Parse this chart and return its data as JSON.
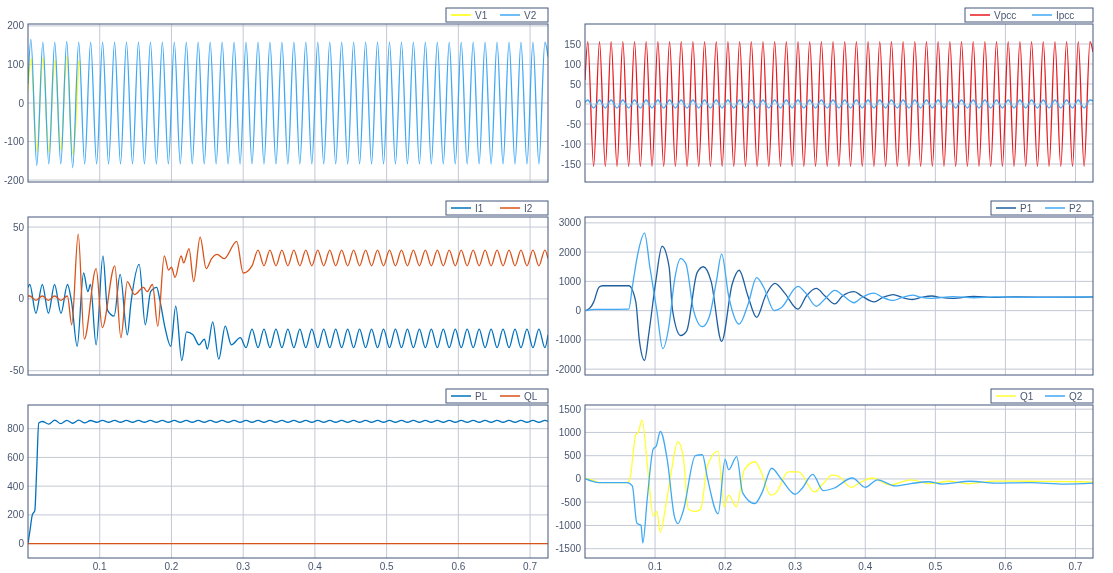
{
  "chart_data": [
    {
      "type": "line",
      "xlim": [
        0,
        0.725
      ],
      "xticks": [
        0.1,
        0.2,
        0.3,
        0.4,
        0.5,
        0.6,
        0.7
      ],
      "ylim": [
        -205,
        205
      ],
      "yticks": [
        -200,
        -100,
        0,
        100,
        200
      ],
      "grid": true,
      "legend": "top right",
      "tick_labels": "y",
      "x": [
        0,
        0.004,
        0.0123,
        0.0207,
        0.029,
        0.0373,
        0.0457,
        0.054,
        0.0623,
        0.0707,
        0.079,
        0.0873,
        0.0957,
        0.104,
        0.1123,
        0.1207,
        0.129,
        0.1373,
        0.1457,
        0.154,
        0.1623,
        0.1707,
        0.179,
        0.1873,
        0.1957,
        0.204,
        0.2123,
        0.2207,
        0.229,
        0.2373,
        0.2457,
        0.254,
        0.2623,
        0.2707,
        0.279,
        0.2873,
        0.2957,
        0.304,
        0.3123,
        0.3207,
        0.329,
        0.3373,
        0.3457,
        0.354,
        0.3623,
        0.3707,
        0.379,
        0.3873,
        0.3957,
        0.404,
        0.4123,
        0.4207,
        0.429,
        0.4373,
        0.4457,
        0.454,
        0.4623,
        0.4707,
        0.479,
        0.4873,
        0.4957,
        0.504,
        0.5123,
        0.5207,
        0.529,
        0.5373,
        0.5457,
        0.554,
        0.5623,
        0.5707,
        0.579,
        0.5873,
        0.5957,
        0.604,
        0.6123,
        0.6207,
        0.629,
        0.6373,
        0.6457,
        0.654,
        0.6623,
        0.6707,
        0.679,
        0.6873,
        0.6957,
        0.704,
        0.7123,
        0.7207,
        0.725
      ],
      "series": [
        {
          "name": "V1",
          "color": "#ffff00",
          "x": [
            0,
            0.004,
            0.0123,
            0.0207,
            0.029,
            0.0373,
            0.0457,
            0.054,
            0.0623,
            0.0707
          ],
          "values": [
            30,
            115,
            -125,
            118,
            -128,
            112,
            -122,
            120,
            -132,
            110
          ]
        },
        {
          "name": "V2",
          "color": "#3fa9f5",
          "values": [
            50,
            165,
            -162,
            158,
            -158,
            158,
            -158,
            160,
            -168,
            158,
            -158,
            158,
            -158,
            158,
            -158,
            158,
            -158,
            158,
            -158,
            158,
            -158,
            158,
            -158,
            158,
            -158,
            158,
            -158,
            158,
            -158,
            158,
            -158,
            158,
            -158,
            158,
            -158,
            158,
            -158,
            158,
            -158,
            158,
            -158,
            158,
            -158,
            158,
            -158,
            158,
            -158,
            158,
            -158,
            158,
            -158,
            158,
            -158,
            158,
            -158,
            158,
            -158,
            158,
            -158,
            158,
            -158,
            158,
            -158,
            158,
            -158,
            158,
            -158,
            158,
            -158,
            158,
            -158,
            158,
            -158,
            158,
            -158,
            158,
            -158,
            158,
            -158,
            158,
            -158,
            158,
            -158,
            158,
            -158,
            158,
            -158,
            158,
            120
          ]
        }
      ]
    },
    {
      "type": "line",
      "xlim": [
        0,
        0.725
      ],
      "xticks": [
        0.1,
        0.2,
        0.3,
        0.4,
        0.5,
        0.6,
        0.7
      ],
      "ylim": [
        -195,
        200
      ],
      "yticks": [
        -150,
        -100,
        -50,
        0,
        50,
        100,
        150
      ],
      "grid": true,
      "legend": "top right",
      "tick_labels": "y",
      "x": [
        0,
        0.004,
        0.0123,
        0.0207,
        0.029,
        0.0373,
        0.0457,
        0.054,
        0.0623,
        0.0707,
        0.079,
        0.0873,
        0.0957,
        0.104,
        0.1123,
        0.1207,
        0.129,
        0.1373,
        0.1457,
        0.154,
        0.1623,
        0.1707,
        0.179,
        0.1873,
        0.1957,
        0.204,
        0.2123,
        0.2207,
        0.229,
        0.2373,
        0.2457,
        0.254,
        0.2623,
        0.2707,
        0.279,
        0.2873,
        0.2957,
        0.304,
        0.3123,
        0.3207,
        0.329,
        0.3373,
        0.3457,
        0.354,
        0.3623,
        0.3707,
        0.379,
        0.3873,
        0.3957,
        0.404,
        0.4123,
        0.4207,
        0.429,
        0.4373,
        0.4457,
        0.454,
        0.4623,
        0.4707,
        0.479,
        0.4873,
        0.4957,
        0.504,
        0.5123,
        0.5207,
        0.529,
        0.5373,
        0.5457,
        0.554,
        0.5623,
        0.5707,
        0.579,
        0.5873,
        0.5957,
        0.604,
        0.6123,
        0.6207,
        0.629,
        0.6373,
        0.6457,
        0.654,
        0.6623,
        0.6707,
        0.679,
        0.6873,
        0.6957,
        0.704,
        0.7123,
        0.7207,
        0.725
      ],
      "series": [
        {
          "name": "Vpcc",
          "color": "#e8191e",
          "values": [
            60,
            156,
            -156,
            156,
            -156,
            156,
            -156,
            156,
            -156,
            156,
            -156,
            156,
            -156,
            156,
            -156,
            156,
            -156,
            156,
            -156,
            156,
            -156,
            156,
            -156,
            156,
            -156,
            156,
            -156,
            156,
            -156,
            156,
            -156,
            156,
            -156,
            156,
            -156,
            156,
            -156,
            156,
            -156,
            156,
            -156,
            156,
            -156,
            156,
            -156,
            156,
            -156,
            156,
            -156,
            156,
            -156,
            156,
            -156,
            156,
            -156,
            156,
            -156,
            156,
            -156,
            156,
            -156,
            156,
            -156,
            156,
            -156,
            156,
            -156,
            156,
            -156,
            156,
            -156,
            156,
            -156,
            156,
            -156,
            156,
            -156,
            156,
            -156,
            156,
            -156,
            156,
            -156,
            156,
            -156,
            156,
            -156,
            156,
            130
          ]
        },
        {
          "name": "Ipcc",
          "color": "#3fa9f5",
          "values": [
            4,
            10,
            -10,
            10,
            -10,
            10,
            -10,
            10,
            -10,
            10,
            -10,
            10,
            -10,
            10,
            -10,
            10,
            -10,
            10,
            -10,
            10,
            -10,
            10,
            -10,
            10,
            -10,
            10,
            -10,
            10,
            -10,
            10,
            -10,
            10,
            -10,
            10,
            -10,
            10,
            -10,
            10,
            -10,
            10,
            -10,
            10,
            -10,
            10,
            -10,
            10,
            -10,
            10,
            -10,
            10,
            -10,
            10,
            -10,
            10,
            -10,
            10,
            -10,
            10,
            -10,
            10,
            -10,
            10,
            -10,
            10,
            -10,
            10,
            -10,
            10,
            -10,
            10,
            -10,
            10,
            -10,
            10,
            -10,
            10,
            -10,
            10,
            -10,
            10,
            -10,
            10,
            -10,
            10,
            -10,
            10,
            -10,
            10,
            8
          ]
        }
      ]
    },
    {
      "type": "line",
      "xlim": [
        0,
        0.725
      ],
      "xticks": [
        0.1,
        0.2,
        0.3,
        0.4,
        0.5,
        0.6,
        0.7
      ],
      "ylim": [
        -53,
        57
      ],
      "yticks": [
        -50,
        0,
        50
      ],
      "grid": true,
      "legend": "top right",
      "tick_labels": "y",
      "series": [
        {
          "name": "I1",
          "color": "#0072bd",
          "x": [
            0,
            0.0025,
            0.011,
            0.02,
            0.0285,
            0.037,
            0.046,
            0.055,
            0.061,
            0.0685,
            0.0775,
            0.0835,
            0.087,
            0.095,
            0.1045,
            0.111,
            0.12,
            0.1285,
            0.1385,
            0.1435,
            0.155,
            0.1635,
            0.171,
            0.1795,
            0.1835,
            0.191,
            0.199,
            0.206,
            0.2145,
            0.221,
            0.23,
            0.2385,
            0.246,
            0.25,
            0.2575,
            0.266,
            0.275,
            0.2835,
            0.296,
            0.304,
            0.3123,
            0.3207,
            0.329,
            0.3373,
            0.3457,
            0.354,
            0.3623,
            0.3707,
            0.379,
            0.3873,
            0.3957,
            0.404,
            0.4123,
            0.4207,
            0.429,
            0.4373,
            0.4457,
            0.454,
            0.4623,
            0.4707,
            0.479,
            0.4873,
            0.4957,
            0.504,
            0.5123,
            0.5207,
            0.529,
            0.5373,
            0.5457,
            0.554,
            0.5623,
            0.5707,
            0.579,
            0.5873,
            0.5957,
            0.604,
            0.6123,
            0.6207,
            0.629,
            0.6373,
            0.6457,
            0.654,
            0.6623,
            0.6707,
            0.679,
            0.6873,
            0.6957,
            0.704,
            0.7123,
            0.7207,
            0.725
          ],
          "values": [
            8,
            10,
            -10,
            10,
            -10,
            10,
            -10,
            10,
            -3,
            -33,
            18,
            5,
            10,
            -32,
            30,
            -8,
            -12,
            17,
            -25,
            -3,
            24,
            -18,
            5,
            8,
            0,
            -20,
            -33,
            -5,
            -43,
            -23,
            -25,
            -32,
            -28,
            -35,
            -16,
            -42,
            -19,
            -32,
            -27,
            -34,
            -21,
            -34,
            -21,
            -34,
            -21,
            -34,
            -21,
            -34,
            -21,
            -34,
            -21,
            -34,
            -21,
            -34,
            -21,
            -34,
            -21,
            -34,
            -21,
            -34,
            -21,
            -34,
            -21,
            -34,
            -21,
            -34,
            -21,
            -34,
            -21,
            -34,
            -21,
            -34,
            -21,
            -34,
            -21,
            -34,
            -21,
            -34,
            -21,
            -34,
            -21,
            -34,
            -21,
            -34,
            -21,
            -34,
            -21,
            -34,
            -21,
            -34,
            -25
          ]
        },
        {
          "name": "I2",
          "color": "#d95319",
          "x": [
            0,
            0.0025,
            0.011,
            0.02,
            0.0285,
            0.037,
            0.046,
            0.055,
            0.061,
            0.07,
            0.0785,
            0.095,
            0.1035,
            0.121,
            0.1295,
            0.1385,
            0.1485,
            0.161,
            0.166,
            0.1735,
            0.181,
            0.19,
            0.196,
            0.2,
            0.205,
            0.2135,
            0.217,
            0.2245,
            0.231,
            0.24,
            0.2485,
            0.256,
            0.2635,
            0.2735,
            0.291,
            0.3,
            0.3123,
            0.3207,
            0.329,
            0.3373,
            0.3457,
            0.354,
            0.3623,
            0.3707,
            0.379,
            0.3873,
            0.3957,
            0.404,
            0.4123,
            0.4207,
            0.429,
            0.4373,
            0.4457,
            0.454,
            0.4623,
            0.4707,
            0.479,
            0.4873,
            0.4957,
            0.504,
            0.5123,
            0.5207,
            0.529,
            0.5373,
            0.5457,
            0.554,
            0.5623,
            0.5707,
            0.579,
            0.5873,
            0.5957,
            0.604,
            0.6123,
            0.6207,
            0.629,
            0.6373,
            0.6457,
            0.654,
            0.6623,
            0.6707,
            0.679,
            0.6873,
            0.6957,
            0.704,
            0.7123,
            0.7207,
            0.725
          ],
          "values": [
            2,
            2,
            -1,
            2,
            -1,
            2,
            -1,
            2,
            -18,
            45,
            -28,
            21,
            -20,
            23,
            -27,
            12,
            3,
            8,
            5,
            10,
            -19,
            30,
            20,
            22,
            15,
            30,
            25,
            35,
            12,
            43,
            21,
            28,
            31,
            28,
            40,
            18,
            23,
            34,
            23,
            34,
            23,
            34,
            23,
            34,
            23,
            34,
            23,
            34,
            23,
            34,
            23,
            34,
            23,
            34,
            23,
            34,
            23,
            34,
            23,
            34,
            23,
            34,
            23,
            34,
            23,
            34,
            23,
            34,
            23,
            34,
            23,
            34,
            23,
            34,
            23,
            34,
            23,
            34,
            23,
            34,
            23,
            34,
            23,
            34,
            23,
            34,
            28
          ]
        }
      ]
    },
    {
      "type": "line",
      "xlim": [
        0,
        0.725
      ],
      "xticks": [
        0.1,
        0.2,
        0.3,
        0.4,
        0.5,
        0.6,
        0.7
      ],
      "ylim": [
        -2200,
        3200
      ],
      "yticks": [
        -2000,
        -1000,
        0,
        1000,
        2000,
        3000
      ],
      "grid": true,
      "legend": "top right",
      "tick_labels": "y",
      "series": [
        {
          "name": "P1",
          "color": "#1f5fa0",
          "x": [
            0.001,
            0.0075,
            0.0125,
            0.02,
            0.025,
            0.0625,
            0.0725,
            0.0775,
            0.085,
            0.091,
            0.101,
            0.11,
            0.12,
            0.125,
            0.1365,
            0.145,
            0.16,
            0.169,
            0.18,
            0.195,
            0.21,
            0.22,
            0.2325,
            0.245,
            0.2575,
            0.271,
            0.285,
            0.304,
            0.316,
            0.33,
            0.3425,
            0.3565,
            0.3675,
            0.384,
            0.395,
            0.4125,
            0.425,
            0.44,
            0.4525,
            0.4675,
            0.48,
            0.495,
            0.5075,
            0.525,
            0.555,
            0.585,
            0.61,
            0.685,
            0.725
          ],
          "values": [
            0,
            100,
            300,
            800,
            850,
            850,
            300,
            -1000,
            -1700,
            -800,
            1000,
            2200,
            1500,
            0,
            -850,
            -700,
            1300,
            1500,
            1000,
            -1050,
            900,
            1380,
            500,
            -230,
            500,
            930,
            600,
            50,
            500,
            760,
            500,
            230,
            500,
            650,
            500,
            300,
            450,
            550,
            450,
            380,
            450,
            500,
            450,
            420,
            490,
            450,
            470,
            460,
            470
          ]
        },
        {
          "name": "P2",
          "color": "#3fa9f5",
          "x": [
            0.001,
            0.015,
            0.0625,
            0.0675,
            0.075,
            0.085,
            0.0925,
            0.1025,
            0.111,
            0.12,
            0.1275,
            0.1365,
            0.144,
            0.155,
            0.1675,
            0.1775,
            0.1875,
            0.195,
            0.205,
            0.22,
            0.2325,
            0.245,
            0.255,
            0.27,
            0.28,
            0.304,
            0.315,
            0.33,
            0.3425,
            0.3565,
            0.369,
            0.384,
            0.395,
            0.4125,
            0.425,
            0.44,
            0.4525,
            0.4675,
            0.48,
            0.495,
            0.525,
            0.555,
            0.585,
            0.635,
            0.725
          ],
          "values": [
            0,
            40,
            50,
            800,
            1900,
            2650,
            1500,
            0,
            -1300,
            -500,
            1000,
            1780,
            1600,
            0,
            -550,
            -200,
            1000,
            1930,
            500,
            -460,
            200,
            1130,
            800,
            0,
            100,
            830,
            600,
            150,
            400,
            690,
            500,
            270,
            450,
            600,
            450,
            350,
            450,
            530,
            450,
            420,
            480,
            440,
            470,
            450,
            470
          ]
        }
      ]
    },
    {
      "type": "line",
      "xlim": [
        0,
        0.725
      ],
      "xticks": [
        0.1,
        0.2,
        0.3,
        0.4,
        0.5,
        0.6,
        0.7
      ],
      "ylim": [
        -100,
        965
      ],
      "yticks": [
        0,
        200,
        400,
        600,
        800
      ],
      "grid": true,
      "legend": "top right",
      "series": [
        {
          "name": "PL",
          "color": "#0072bd",
          "x": [
            0,
            0.003,
            0.006,
            0.0095,
            0.012,
            0.015,
            0.02,
            0.029,
            0.0373,
            0.0457,
            0.054,
            0.0623,
            0.0707,
            0.079,
            0.0873,
            0.0957,
            0.104,
            0.1123,
            0.1207,
            0.129,
            0.1373,
            0.1457,
            0.154,
            0.1623,
            0.1707,
            0.179,
            0.1873,
            0.1957,
            0.204,
            0.2123,
            0.2207,
            0.229,
            0.2373,
            0.2457,
            0.254,
            0.2623,
            0.2707,
            0.279,
            0.2873,
            0.2957,
            0.304,
            0.3123,
            0.3207,
            0.329,
            0.3373,
            0.3457,
            0.354,
            0.3623,
            0.3707,
            0.379,
            0.3873,
            0.3957,
            0.404,
            0.4123,
            0.4207,
            0.429,
            0.4373,
            0.4457,
            0.454,
            0.4623,
            0.4707,
            0.479,
            0.4873,
            0.4957,
            0.504,
            0.5123,
            0.5207,
            0.529,
            0.5373,
            0.5457,
            0.554,
            0.5623,
            0.5707,
            0.579,
            0.5873,
            0.5957,
            0.604,
            0.6123,
            0.6207,
            0.629,
            0.6373,
            0.6457,
            0.654,
            0.6623,
            0.6707,
            0.679,
            0.6873,
            0.6957,
            0.704,
            0.7123,
            0.7207,
            0.725
          ],
          "values": [
            0,
            100,
            200,
            230,
            500,
            840,
            850,
            832,
            860,
            835,
            858,
            838,
            860,
            840,
            857,
            845,
            858,
            845,
            858,
            845,
            858,
            845,
            858,
            845,
            858,
            845,
            858,
            845,
            858,
            845,
            858,
            845,
            858,
            845,
            858,
            845,
            858,
            845,
            858,
            845,
            858,
            845,
            858,
            845,
            858,
            845,
            858,
            845,
            858,
            845,
            858,
            845,
            858,
            845,
            858,
            845,
            858,
            845,
            858,
            845,
            858,
            845,
            858,
            845,
            858,
            845,
            858,
            845,
            858,
            845,
            858,
            845,
            858,
            845,
            858,
            845,
            858,
            845,
            858,
            845,
            858,
            845,
            858,
            845,
            858,
            845,
            858,
            845,
            858,
            845,
            858,
            850
          ]
        },
        {
          "name": "QL",
          "color": "#d95319",
          "x": [
            0,
            0.725
          ],
          "values": [
            0,
            0
          ]
        }
      ]
    },
    {
      "type": "line",
      "xlim": [
        0,
        0.725
      ],
      "xticks": [
        0.1,
        0.2,
        0.3,
        0.4,
        0.5,
        0.6,
        0.7
      ],
      "ylim": [
        -1700,
        1590
      ],
      "yticks": [
        -1500,
        -1000,
        -500,
        0,
        500,
        1000,
        1500
      ],
      "grid": true,
      "legend": "top right",
      "series": [
        {
          "name": "Q1",
          "color": "#ffff33",
          "x": [
            0.001,
            0.01,
            0.02,
            0.06,
            0.064,
            0.0725,
            0.076,
            0.0815,
            0.089,
            0.0975,
            0.1025,
            0.1075,
            0.115,
            0.1225,
            0.1325,
            0.14,
            0.1475,
            0.1575,
            0.165,
            0.175,
            0.19,
            0.1985,
            0.205,
            0.216,
            0.2275,
            0.2425,
            0.25,
            0.265,
            0.2725,
            0.29,
            0.305,
            0.3275,
            0.34,
            0.3525,
            0.3625,
            0.38,
            0.39,
            0.41,
            0.435,
            0.465,
            0.49,
            0.52,
            0.545,
            0.585,
            0.635,
            0.71,
            0.725
          ],
          "values": [
            0,
            -20,
            -80,
            -80,
            0,
            950,
            1000,
            1270,
            300,
            -800,
            -700,
            -1150,
            -600,
            100,
            800,
            500,
            -650,
            -700,
            -650,
            300,
            600,
            -600,
            -350,
            -600,
            200,
            370,
            200,
            -350,
            -300,
            150,
            150,
            -280,
            -100,
            80,
            50,
            -180,
            -100,
            20,
            -130,
            -20,
            -100,
            -50,
            -100,
            -45,
            -50,
            -60,
            -70
          ]
        },
        {
          "name": "Q2",
          "color": "#3fa9f5",
          "x": [
            0.001,
            0.02,
            0.06,
            0.0675,
            0.074,
            0.08,
            0.0825,
            0.089,
            0.0975,
            0.1015,
            0.1075,
            0.1175,
            0.1275,
            0.1325,
            0.14,
            0.1575,
            0.1675,
            0.175,
            0.19,
            0.2,
            0.205,
            0.2165,
            0.225,
            0.2425,
            0.2525,
            0.2665,
            0.28,
            0.3,
            0.31,
            0.325,
            0.34,
            0.355,
            0.3815,
            0.4,
            0.4175,
            0.4425,
            0.465,
            0.49,
            0.51,
            0.55,
            0.585,
            0.635,
            0.685,
            0.725
          ],
          "values": [
            0,
            -80,
            -80,
            -150,
            -950,
            -1000,
            -1380,
            -400,
            650,
            700,
            1020,
            400,
            -800,
            -960,
            -700,
            500,
            520,
            0,
            -750,
            420,
            200,
            480,
            -300,
            -530,
            -300,
            230,
            0,
            -330,
            -200,
            100,
            -250,
            -200,
            20,
            -180,
            -20,
            -150,
            -100,
            -60,
            -110,
            -50,
            -90,
            -80,
            -110,
            -90
          ]
        }
      ]
    }
  ]
}
